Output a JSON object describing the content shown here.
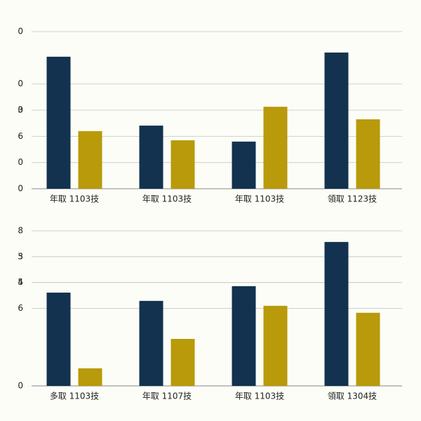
{
  "chart_data": [
    {
      "type": "bar",
      "categories": [
        "年取 1103技",
        "年取 1103技",
        "年取 1103技",
        "領取 1123技"
      ],
      "series": [
        {
          "color": "#12324f",
          "values": [
            5.04,
            2.41,
            1.8,
            5.2
          ]
        },
        {
          "color": "#b89a0a",
          "values": [
            2.2,
            1.85,
            3.13,
            2.65
          ]
        }
      ],
      "ylim": [
        0,
        6
      ],
      "yticks": [
        0,
        {
          "value": 1,
          "label": "0"
        },
        {
          "value": 2,
          "label": "6"
        },
        {
          "value": 3,
          "label": "0"
        },
        {
          "value": 4,
          "label": "0"
        },
        3,
        {
          "value": 6,
          "label": "0"
        }
      ],
      "grid": true
    },
    {
      "type": "bar",
      "categories": [
        "多取 1103技",
        "年取 1107技",
        "年取 1103技",
        "領取 1304技"
      ],
      "series": [
        {
          "color": "#12324f",
          "values": [
            3.61,
            3.29,
            3.86,
            5.57
          ]
        },
        {
          "color": "#b89a0a",
          "values": [
            0.68,
            1.82,
            3.1,
            2.83
          ]
        }
      ],
      "ylim": [
        0,
        6
      ],
      "yticks": [
        0,
        5,
        4,
        {
          "value": 3,
          "label": "6"
        },
        {
          "value": 4,
          "label": "5"
        },
        {
          "value": 5,
          "label": "3"
        },
        {
          "value": 6,
          "label": "8"
        }
      ],
      "grid": true
    }
  ]
}
